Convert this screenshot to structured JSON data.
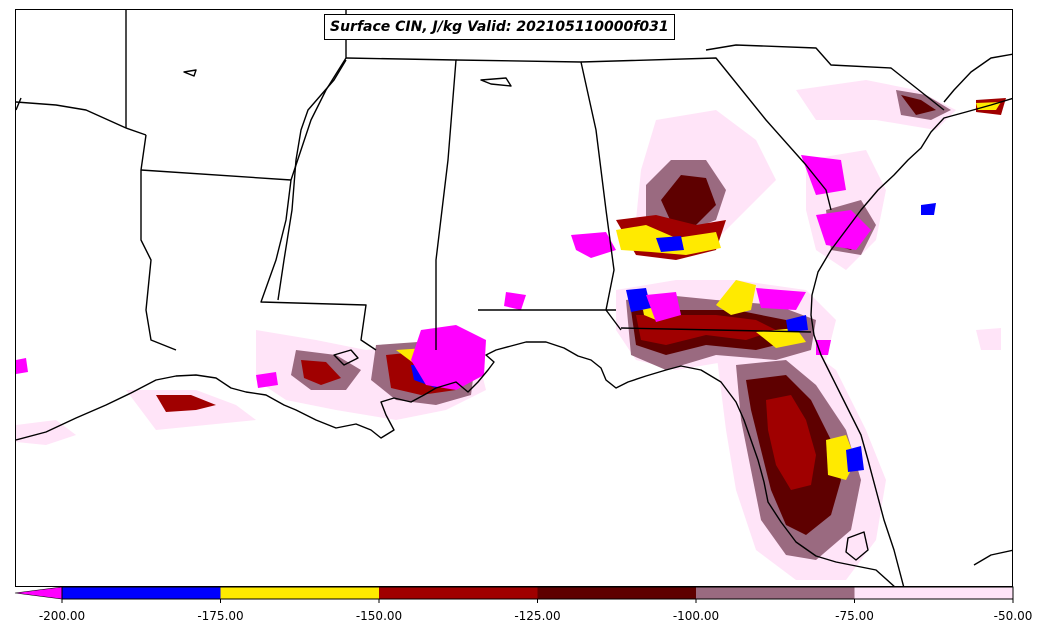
{
  "title": "Surface CIN, J/kg Valid: 202105110000f031",
  "colorbar": {
    "ticks": [
      "-200.00",
      "-175.00",
      "-150.00",
      "-125.00",
      "-100.00",
      "-75.00",
      "-50.00"
    ],
    "bins": [
      {
        "range": [
          -200,
          -175
        ],
        "color": "#0000ff"
      },
      {
        "range": [
          -175,
          -150
        ],
        "color": "#ffea00"
      },
      {
        "range": [
          -150,
          -125
        ],
        "color": "#a00000"
      },
      {
        "range": [
          -125,
          -100
        ],
        "color": "#5e0000"
      },
      {
        "range": [
          -100,
          -75
        ],
        "color": "#9a6a80"
      },
      {
        "range": [
          -75,
          -50
        ],
        "color": "#ffe4f8"
      }
    ],
    "under_color": "#ff00ff"
  },
  "colors": {
    "very_low": "#ff00ff",
    "outline": "#000000"
  }
}
